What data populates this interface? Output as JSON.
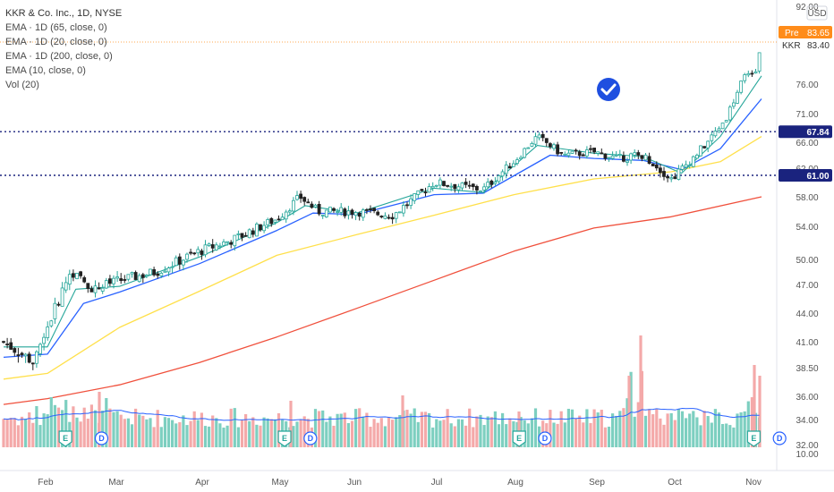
{
  "header": {
    "title": "KKR & Co. Inc., 1D, NYSE",
    "indicators": [
      "EMA · 1D (65, close, 0)",
      "EMA · 1D (20, close, 0)",
      "EMA · 1D (200, close, 0)",
      "EMA (10, close, 0)",
      "Vol (20)"
    ]
  },
  "price_axis": {
    "currency": "USD",
    "ticks": [
      "92.00",
      "76.00",
      "71.00",
      "66.00",
      "62.00",
      "58.00",
      "54.00",
      "50.00",
      "47.00",
      "44.00",
      "41.00",
      "38.50",
      "36.00",
      "34.00",
      "32.00",
      "10.00"
    ],
    "pre_label": "Pre",
    "pre_value": "83.65",
    "symbol": "KKR",
    "last_value": "83.40"
  },
  "x_axis": {
    "months": [
      "Feb",
      "Mar",
      "Apr",
      "May",
      "Jun",
      "Jul",
      "Aug",
      "Sep",
      "Oct",
      "Nov"
    ]
  },
  "horizontal_lines": [
    {
      "value": 67.84,
      "label": "67.84"
    },
    {
      "value": 61.0,
      "label": "61.00"
    }
  ],
  "event_markers": [
    {
      "type": "E",
      "date": "2021-02-08"
    },
    {
      "type": "D",
      "date": "2021-02-22"
    },
    {
      "type": "E",
      "date": "2021-05-04"
    },
    {
      "type": "D",
      "date": "2021-05-14"
    },
    {
      "type": "E",
      "date": "2021-08-03"
    },
    {
      "type": "D",
      "date": "2021-08-13"
    },
    {
      "type": "E",
      "date": "2021-11-02"
    },
    {
      "type": "D",
      "date": "2021-11-12"
    }
  ],
  "colors": {
    "up": "#26a69a",
    "down": "#222222",
    "ema10": "#26a69a",
    "ema20": "#2962ff",
    "ema65": "#ffe04b",
    "ema200": "#f0503c",
    "volume_up": "#7dcfc0",
    "volume_down": "#f4a9a9",
    "volume_ma": "#2962ff",
    "hline": "#1a237e",
    "pre_badge": "#ff8c1a",
    "verified_badge": "#1f4fe0"
  },
  "chart_data": {
    "type": "candlestick",
    "symbol": "KKR",
    "timeframe": "1D",
    "exchange": "NYSE",
    "ylim": [
      32,
      92
    ],
    "close_path": [
      {
        "date": "2021-01-15",
        "close": 41.0
      },
      {
        "date": "2021-01-27",
        "close": 39.0
      },
      {
        "date": "2021-02-01",
        "close": 42.5
      },
      {
        "date": "2021-02-10",
        "close": 48.5
      },
      {
        "date": "2021-02-19",
        "close": 46.5
      },
      {
        "date": "2021-03-01",
        "close": 47.5
      },
      {
        "date": "2021-03-15",
        "close": 48.5
      },
      {
        "date": "2021-04-01",
        "close": 51.0
      },
      {
        "date": "2021-04-15",
        "close": 52.5
      },
      {
        "date": "2021-05-01",
        "close": 55.0
      },
      {
        "date": "2021-05-10",
        "close": 58.0
      },
      {
        "date": "2021-05-17",
        "close": 56.0
      },
      {
        "date": "2021-06-01",
        "close": 56.0
      },
      {
        "date": "2021-06-15",
        "close": 55.5
      },
      {
        "date": "2021-07-01",
        "close": 60.0
      },
      {
        "date": "2021-07-20",
        "close": 59.0
      },
      {
        "date": "2021-08-01",
        "close": 63.0
      },
      {
        "date": "2021-08-10",
        "close": 67.0
      },
      {
        "date": "2021-08-20",
        "close": 64.0
      },
      {
        "date": "2021-09-01",
        "close": 64.5
      },
      {
        "date": "2021-09-10",
        "close": 63.5
      },
      {
        "date": "2021-09-20",
        "close": 64.0
      },
      {
        "date": "2021-10-01",
        "close": 60.5
      },
      {
        "date": "2021-10-08",
        "close": 63.0
      },
      {
        "date": "2021-10-15",
        "close": 66.0
      },
      {
        "date": "2021-10-22",
        "close": 70.0
      },
      {
        "date": "2021-10-29",
        "close": 77.0
      },
      {
        "date": "2021-11-03",
        "close": 78.5
      },
      {
        "date": "2021-11-05",
        "close": 83.4
      }
    ],
    "ema_approx": {
      "ema10": [
        {
          "date": "2021-01-15",
          "value": 40.5
        },
        {
          "date": "2021-02-01",
          "value": 40.5
        },
        {
          "date": "2021-02-12",
          "value": 46.5
        },
        {
          "date": "2021-03-01",
          "value": 46.8
        },
        {
          "date": "2021-04-01",
          "value": 50.3
        },
        {
          "date": "2021-05-01",
          "value": 54.5
        },
        {
          "date": "2021-05-12",
          "value": 56.8
        },
        {
          "date": "2021-06-01",
          "value": 55.8
        },
        {
          "date": "2021-07-01",
          "value": 59.2
        },
        {
          "date": "2021-07-20",
          "value": 58.6
        },
        {
          "date": "2021-08-10",
          "value": 65.5
        },
        {
          "date": "2021-09-01",
          "value": 64.3
        },
        {
          "date": "2021-09-20",
          "value": 63.8
        },
        {
          "date": "2021-10-05",
          "value": 61.3
        },
        {
          "date": "2021-10-20",
          "value": 67.0
        },
        {
          "date": "2021-11-05",
          "value": 77.5
        }
      ],
      "ema20": [
        {
          "date": "2021-01-15",
          "value": 39.5
        },
        {
          "date": "2021-02-01",
          "value": 39.8
        },
        {
          "date": "2021-02-15",
          "value": 45.0
        },
        {
          "date": "2021-03-01",
          "value": 46.2
        },
        {
          "date": "2021-04-01",
          "value": 49.5
        },
        {
          "date": "2021-05-01",
          "value": 53.5
        },
        {
          "date": "2021-05-15",
          "value": 55.8
        },
        {
          "date": "2021-06-01",
          "value": 55.6
        },
        {
          "date": "2021-07-01",
          "value": 58.3
        },
        {
          "date": "2021-07-20",
          "value": 58.5
        },
        {
          "date": "2021-08-15",
          "value": 64.0
        },
        {
          "date": "2021-09-01",
          "value": 63.5
        },
        {
          "date": "2021-09-20",
          "value": 63.2
        },
        {
          "date": "2021-10-05",
          "value": 61.8
        },
        {
          "date": "2021-10-20",
          "value": 65.0
        },
        {
          "date": "2021-11-05",
          "value": 73.5
        }
      ],
      "ema65": [
        {
          "date": "2021-01-15",
          "value": 37.5
        },
        {
          "date": "2021-02-01",
          "value": 38.0
        },
        {
          "date": "2021-03-01",
          "value": 42.5
        },
        {
          "date": "2021-04-01",
          "value": 46.3
        },
        {
          "date": "2021-05-01",
          "value": 50.5
        },
        {
          "date": "2021-06-01",
          "value": 53.0
        },
        {
          "date": "2021-07-01",
          "value": 55.5
        },
        {
          "date": "2021-08-01",
          "value": 58.3
        },
        {
          "date": "2021-09-01",
          "value": 60.5
        },
        {
          "date": "2021-10-01",
          "value": 61.5
        },
        {
          "date": "2021-10-20",
          "value": 63.0
        },
        {
          "date": "2021-11-05",
          "value": 67.0
        }
      ],
      "ema200": [
        {
          "date": "2021-01-15",
          "value": 35.3
        },
        {
          "date": "2021-02-01",
          "value": 35.8
        },
        {
          "date": "2021-03-01",
          "value": 37.0
        },
        {
          "date": "2021-04-01",
          "value": 39.0
        },
        {
          "date": "2021-05-01",
          "value": 41.5
        },
        {
          "date": "2021-06-01",
          "value": 44.5
        },
        {
          "date": "2021-07-01",
          "value": 47.5
        },
        {
          "date": "2021-08-01",
          "value": 51.0
        },
        {
          "date": "2021-09-01",
          "value": 53.8
        },
        {
          "date": "2021-10-01",
          "value": 55.3
        },
        {
          "date": "2021-11-05",
          "value": 58.0
        }
      ]
    },
    "volume_note": "Volume bars with 20-day MA; spikes in early Feb, mid-Oct and early Nov"
  }
}
